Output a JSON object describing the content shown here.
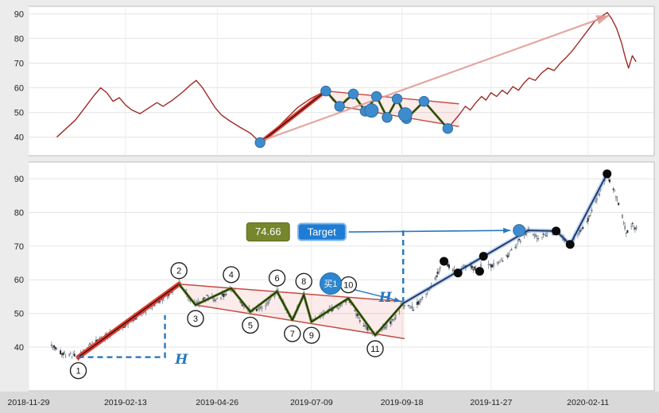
{
  "axis": {
    "x_ticks": [
      "2018-11-29",
      "2019-02-13",
      "2019-04-26",
      "2019-07-09",
      "2019-09-18",
      "2019-11-27",
      "2020-02-11"
    ],
    "y_ticks": [
      40,
      50,
      60,
      70,
      80,
      90
    ]
  },
  "annotations": {
    "target_price": "74.66",
    "target_label": "Target",
    "buy_label": "买1",
    "h_label": "H"
  },
  "colors": {
    "price_line_red": "#9e2b25",
    "impulse_red": "#e03a2f",
    "channel_red": "#c24a42",
    "channel_fill": "rgba(225,100,90,0.13)",
    "zigzag_green": "#56821f",
    "trend_blue_core": "#233a66",
    "trend_blue_glow": "rgba(130,175,235,0.5)",
    "accent_blue": "#2878be",
    "pivot_dot_blue": "#3e8ccd",
    "target_box_olive": "#76862c",
    "target_button_blue": "#1f7cd4",
    "candle_dark": "#2f343e",
    "candle_light": "#9097a2",
    "arrow_pink": "rgba(225,150,145,0.85)"
  },
  "chart_data": [
    {
      "type": "line",
      "name": "overview-panel",
      "ylim": [
        32.5,
        93
      ],
      "yticks": [
        40,
        50,
        60,
        70,
        80,
        90
      ],
      "series": [
        {
          "name": "price",
          "points": [
            [
              0.045,
              40
            ],
            [
              0.06,
              43.5
            ],
            [
              0.075,
              47
            ],
            [
              0.09,
              52
            ],
            [
              0.105,
              57
            ],
            [
              0.115,
              60
            ],
            [
              0.125,
              58
            ],
            [
              0.135,
              54.5
            ],
            [
              0.145,
              56
            ],
            [
              0.155,
              53
            ],
            [
              0.165,
              51
            ],
            [
              0.178,
              49.5
            ],
            [
              0.19,
              51.5
            ],
            [
              0.205,
              54
            ],
            [
              0.215,
              52.5
            ],
            [
              0.23,
              55
            ],
            [
              0.245,
              58
            ],
            [
              0.258,
              61
            ],
            [
              0.268,
              63
            ],
            [
              0.278,
              60
            ],
            [
              0.288,
              56
            ],
            [
              0.298,
              52
            ],
            [
              0.308,
              49
            ],
            [
              0.322,
              46.5
            ],
            [
              0.338,
              44
            ],
            [
              0.355,
              41.5
            ],
            [
              0.37,
              37.8
            ],
            [
              0.39,
              42
            ],
            [
              0.41,
              47
            ],
            [
              0.43,
              52
            ],
            [
              0.45,
              55.5
            ],
            [
              0.465,
              57.5
            ],
            [
              0.475,
              58.7
            ],
            [
              0.486,
              55
            ],
            [
              0.497,
              52.5
            ],
            [
              0.508,
              55.5
            ],
            [
              0.519,
              57.5
            ],
            [
              0.528,
              54.5
            ],
            [
              0.538,
              50.5
            ],
            [
              0.547,
              54
            ],
            [
              0.556,
              56.5
            ],
            [
              0.565,
              52
            ],
            [
              0.573,
              48
            ],
            [
              0.581,
              52
            ],
            [
              0.589,
              55.5
            ],
            [
              0.597,
              51
            ],
            [
              0.604,
              47.5
            ],
            [
              0.618,
              51
            ],
            [
              0.632,
              54.5
            ],
            [
              0.65,
              49
            ],
            [
              0.67,
              43.5
            ],
            [
              0.678,
              46
            ],
            [
              0.688,
              49
            ],
            [
              0.698,
              52.5
            ],
            [
              0.706,
              51
            ],
            [
              0.715,
              54
            ],
            [
              0.724,
              56.5
            ],
            [
              0.731,
              55
            ],
            [
              0.739,
              58
            ],
            [
              0.748,
              56.5
            ],
            [
              0.757,
              59
            ],
            [
              0.765,
              57.5
            ],
            [
              0.774,
              60.5
            ],
            [
              0.783,
              59
            ],
            [
              0.792,
              62
            ],
            [
              0.8,
              64
            ],
            [
              0.81,
              63
            ],
            [
              0.82,
              66
            ],
            [
              0.83,
              68
            ],
            [
              0.84,
              67
            ],
            [
              0.85,
              70
            ],
            [
              0.86,
              72.5
            ],
            [
              0.869,
              75
            ],
            [
              0.878,
              78
            ],
            [
              0.887,
              81
            ],
            [
              0.896,
              84
            ],
            [
              0.905,
              87
            ],
            [
              0.916,
              89
            ],
            [
              0.925,
              90.5
            ],
            [
              0.932,
              88
            ],
            [
              0.94,
              84
            ],
            [
              0.948,
              78
            ],
            [
              0.954,
              72
            ],
            [
              0.959,
              68
            ],
            [
              0.965,
              73
            ],
            [
              0.971,
              70.5
            ]
          ]
        }
      ],
      "impulse": [
        [
          0.37,
          37.8
        ],
        [
          0.475,
          58.7
        ]
      ],
      "channel": {
        "upper": [
          [
            0.475,
            58.7
          ],
          [
            0.688,
            53.5
          ]
        ],
        "lower": [
          [
            0.497,
            52.5
          ],
          [
            0.688,
            44.3
          ]
        ]
      },
      "zigzag": [
        [
          0.475,
          58.7
        ],
        [
          0.497,
          52.5
        ],
        [
          0.519,
          57.5
        ],
        [
          0.538,
          50.5
        ],
        [
          0.556,
          56.5
        ],
        [
          0.573,
          48
        ],
        [
          0.589,
          55.5
        ],
        [
          0.604,
          47.5
        ],
        [
          0.632,
          54.5
        ],
        [
          0.67,
          43.5
        ]
      ],
      "pivot_dots": [
        [
          0.37,
          37.8
        ],
        [
          0.475,
          58.7
        ],
        [
          0.497,
          52.5
        ],
        [
          0.519,
          57.5
        ],
        [
          0.538,
          50.5
        ],
        [
          0.556,
          56.5
        ],
        [
          0.573,
          48
        ],
        [
          0.589,
          55.5
        ],
        [
          0.604,
          47.5
        ],
        [
          0.632,
          54.5
        ],
        [
          0.67,
          43.5
        ]
      ],
      "emphasis_dots": [
        [
          0.548,
          50.8
        ],
        [
          0.602,
          49.2
        ]
      ],
      "projection_arrow": [
        [
          0.373,
          38.6
        ],
        [
          0.928,
          89.3
        ]
      ]
    },
    {
      "type": "candlestick",
      "name": "detail-panel",
      "ylim": [
        27,
        95
      ],
      "yticks": [
        40,
        50,
        60,
        70,
        80,
        90
      ],
      "x_domain": [
        "2018-11-29",
        "2020-04-03"
      ],
      "anchors": [
        [
          "2018-12-17",
          40.5
        ],
        [
          "2018-12-24",
          38.5
        ],
        [
          "2019-01-07",
          37.0
        ],
        [
          "2019-01-18",
          41.0
        ],
        [
          "2019-02-01",
          44.0
        ],
        [
          "2019-02-13",
          46.5
        ],
        [
          "2019-02-25",
          50.0
        ],
        [
          "2019-03-08",
          52.5
        ],
        [
          "2019-03-18",
          55.5
        ],
        [
          "2019-03-27",
          58.7
        ],
        [
          "2019-04-03",
          55.0
        ],
        [
          "2019-04-09",
          52.5
        ],
        [
          "2019-04-18",
          55.0
        ],
        [
          "2019-04-26",
          54.0
        ],
        [
          "2019-05-07",
          57.5
        ],
        [
          "2019-05-15",
          53.0
        ],
        [
          "2019-05-22",
          50.5
        ],
        [
          "2019-06-03",
          52.5
        ],
        [
          "2019-06-12",
          56.5
        ],
        [
          "2019-06-24",
          48.0
        ],
        [
          "2019-07-03",
          55.5
        ],
        [
          "2019-07-09",
          47.5
        ],
        [
          "2019-07-22",
          50.5
        ],
        [
          "2019-07-31",
          52.0
        ],
        [
          "2019-08-07",
          54.5
        ],
        [
          "2019-08-15",
          48.5
        ],
        [
          "2019-08-21",
          46.0
        ],
        [
          "2019-08-28",
          43.5
        ],
        [
          "2019-09-06",
          46.5
        ],
        [
          "2019-09-13",
          49.0
        ],
        [
          "2019-09-19",
          53.0
        ],
        [
          "2019-09-27",
          51.5
        ],
        [
          "2019-10-04",
          54.5
        ],
        [
          "2019-10-11",
          58.0
        ],
        [
          "2019-10-21",
          65.5
        ],
        [
          "2019-10-28",
          63.0
        ],
        [
          "2019-11-01",
          62.0
        ],
        [
          "2019-11-08",
          64.5
        ],
        [
          "2019-11-18",
          62.5
        ],
        [
          "2019-11-21",
          67.0
        ],
        [
          "2019-11-27",
          64.0
        ],
        [
          "2019-12-05",
          65.5
        ],
        [
          "2019-12-12",
          68.0
        ],
        [
          "2019-12-19",
          71.5
        ],
        [
          "2019-12-26",
          74.66
        ],
        [
          "2020-01-03",
          72.5
        ],
        [
          "2020-01-10",
          73.5
        ],
        [
          "2020-01-17",
          74.5
        ],
        [
          "2020-01-24",
          72.0
        ],
        [
          "2020-01-28",
          70.5
        ],
        [
          "2020-02-04",
          74.0
        ],
        [
          "2020-02-11",
          78.0
        ],
        [
          "2020-02-18",
          84.0
        ],
        [
          "2020-02-26",
          91.5
        ],
        [
          "2020-03-03",
          86.0
        ],
        [
          "2020-03-09",
          79.0
        ],
        [
          "2020-03-12",
          74.0
        ],
        [
          "2020-03-17",
          77.0
        ],
        [
          "2020-03-20",
          75.0
        ]
      ],
      "pivots": [
        {
          "label": "1",
          "date": "2019-01-07",
          "price": 37.0,
          "side": "below"
        },
        {
          "label": "2",
          "date": "2019-03-27",
          "price": 58.7,
          "side": "above"
        },
        {
          "label": "3",
          "date": "2019-04-09",
          "price": 52.5,
          "side": "below"
        },
        {
          "label": "4",
          "date": "2019-05-07",
          "price": 57.5,
          "side": "above"
        },
        {
          "label": "5",
          "date": "2019-05-22",
          "price": 50.5,
          "side": "below"
        },
        {
          "label": "6",
          "date": "2019-06-12",
          "price": 56.5,
          "side": "above"
        },
        {
          "label": "7",
          "date": "2019-06-24",
          "price": 48.0,
          "side": "below"
        },
        {
          "label": "8",
          "date": "2019-07-03",
          "price": 55.5,
          "side": "above"
        },
        {
          "label": "9",
          "date": "2019-07-09",
          "price": 47.5,
          "side": "below"
        },
        {
          "label": "10",
          "date": "2019-08-07",
          "price": 54.5,
          "side": "above"
        },
        {
          "label": "11",
          "date": "2019-08-28",
          "price": 43.5,
          "side": "below"
        }
      ],
      "impulse": [
        [
          "2019-01-07",
          37.0
        ],
        [
          "2019-03-27",
          58.7
        ]
      ],
      "channel": {
        "upper": [
          [
            "2019-03-27",
            58.7
          ],
          [
            "2019-09-20",
            53.5
          ]
        ],
        "lower": [
          [
            "2019-04-09",
            52.5
          ],
          [
            "2019-09-20",
            42.5
          ]
        ]
      },
      "zigzag": [
        [
          "2019-03-27",
          58.7
        ],
        [
          "2019-04-09",
          52.5
        ],
        [
          "2019-05-07",
          57.5
        ],
        [
          "2019-05-22",
          50.5
        ],
        [
          "2019-06-12",
          56.5
        ],
        [
          "2019-06-24",
          48.0
        ],
        [
          "2019-07-03",
          55.5
        ],
        [
          "2019-07-09",
          47.5
        ],
        [
          "2019-08-07",
          54.5
        ],
        [
          "2019-08-28",
          43.5
        ],
        [
          "2019-09-19",
          53.0
        ]
      ],
      "trend_line": [
        [
          "2019-09-19",
          53.0
        ],
        [
          "2019-12-26",
          74.66
        ],
        [
          "2020-01-17",
          74.5
        ],
        [
          "2020-01-28",
          70.5
        ],
        [
          "2020-02-26",
          91.5
        ]
      ],
      "black_dots": [
        [
          "2019-10-21",
          65.5
        ],
        [
          "2019-11-01",
          62.0
        ],
        [
          "2019-11-18",
          62.5
        ],
        [
          "2019-11-21",
          67.0
        ],
        [
          "2020-01-17",
          74.5
        ],
        [
          "2020-01-28",
          70.5
        ],
        [
          "2020-02-26",
          91.5
        ]
      ],
      "target_dot": [
        "2019-12-19",
        74.66
      ],
      "measure1": {
        "from": [
          "2019-01-07",
          37.0
        ],
        "corner": [
          "2019-03-16",
          37.0
        ],
        "top": [
          "2019-03-16",
          49.5
        ],
        "label_at": [
          "2019-03-29",
          36.3
        ]
      },
      "measure2": {
        "from": [
          "2019-09-19",
          53.2
        ],
        "to": [
          "2019-09-19",
          74.66
        ],
        "label_at": [
          "2019-09-05",
          54.6
        ]
      },
      "target_boxes": {
        "price_box_at": [
          "2019-06-05",
          74.2
        ],
        "button_at": [
          "2019-07-17",
          74.2
        ]
      },
      "buy_badge": {
        "at": [
          "2019-07-24",
          58.8
        ],
        "arrow_to": [
          "2019-09-17",
          53.6
        ]
      }
    }
  ]
}
